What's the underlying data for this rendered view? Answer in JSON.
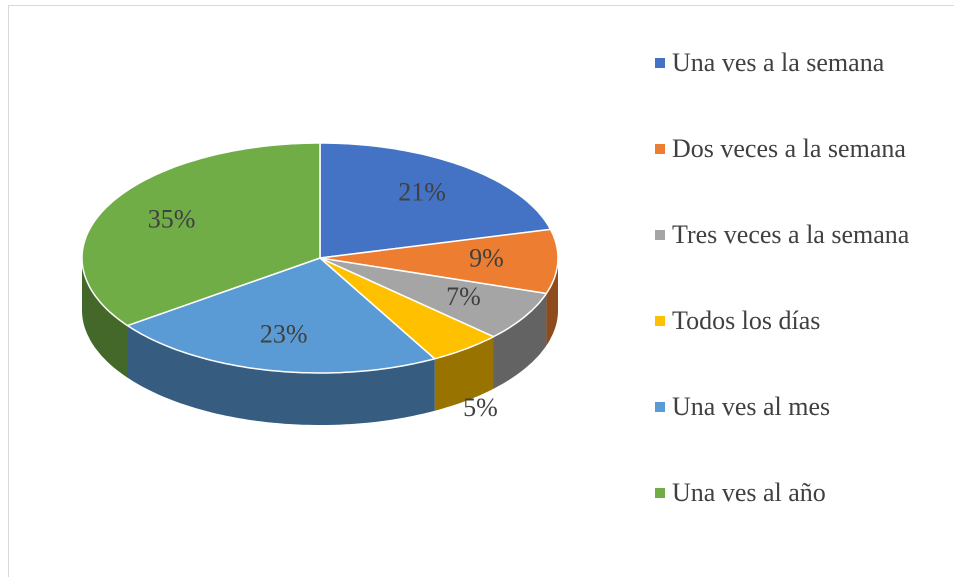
{
  "chart_data": {
    "type": "pie",
    "categories": [
      "Una ves a la semana",
      "Dos veces a la semana",
      "Tres veces a la semana",
      "Todos los días",
      "Una ves al mes",
      "Una ves al año"
    ],
    "values": [
      21,
      9,
      7,
      5,
      23,
      35
    ],
    "value_labels": [
      "21%",
      "9%",
      "7%",
      "5%",
      "23%",
      "35%"
    ],
    "colors": [
      "#4472c4",
      "#ed7d31",
      "#a5a5a5",
      "#ffc000",
      "#5b9bd5",
      "#70ad47"
    ],
    "legend": "right"
  }
}
